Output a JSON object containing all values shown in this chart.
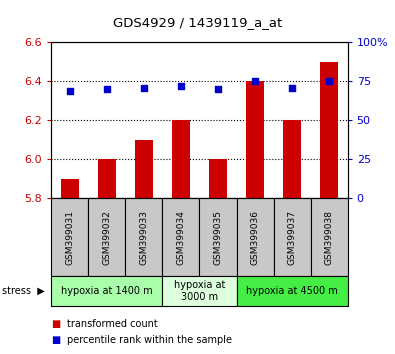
{
  "title": "GDS4929 / 1439119_a_at",
  "samples": [
    "GSM399031",
    "GSM399032",
    "GSM399033",
    "GSM399034",
    "GSM399035",
    "GSM399036",
    "GSM399037",
    "GSM399038"
  ],
  "bar_values": [
    5.9,
    6.0,
    6.1,
    6.2,
    6.0,
    6.4,
    6.2,
    6.5
  ],
  "bar_base": 5.8,
  "dot_values": [
    69,
    70,
    71,
    72,
    70,
    75,
    71,
    75
  ],
  "ylim": [
    5.8,
    6.6
  ],
  "yticks_left": [
    5.8,
    6.0,
    6.2,
    6.4,
    6.6
  ],
  "yticks_right": [
    0,
    25,
    50,
    75,
    100
  ],
  "bar_color": "#cc0000",
  "dot_color": "#0000cc",
  "groups": [
    {
      "label": "hypoxia at 1400 m",
      "start": 0,
      "end": 3,
      "color": "#aaffaa"
    },
    {
      "label": "hypoxia at\n3000 m",
      "start": 3,
      "end": 5,
      "color": "#ddffdd"
    },
    {
      "label": "hypoxia at 4500 m",
      "start": 5,
      "end": 8,
      "color": "#44ee44"
    }
  ],
  "stress_label": "stress",
  "legend_items": [
    {
      "color": "#cc0000",
      "label": "transformed count"
    },
    {
      "color": "#0000cc",
      "label": "percentile rank within the sample"
    }
  ],
  "sample_box_color": "#c8c8c8",
  "plot_bg": "#ffffff"
}
